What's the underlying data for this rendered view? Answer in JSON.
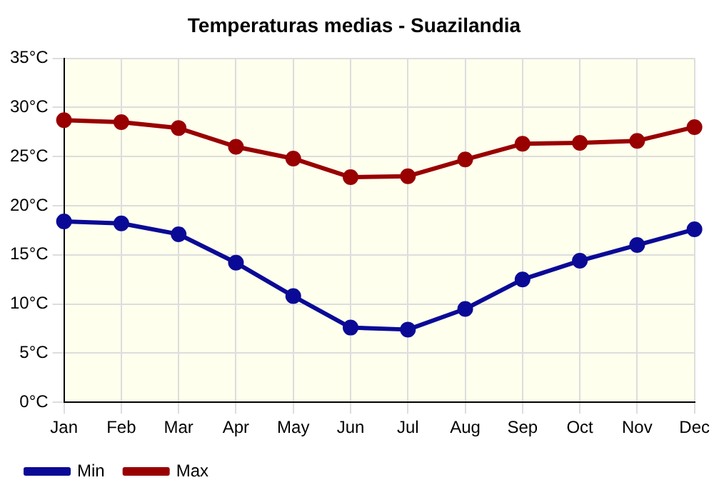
{
  "chart_data": {
    "type": "line",
    "title": "Temperaturas medias - Suazilandia",
    "categories": [
      "Jan",
      "Feb",
      "Mar",
      "Apr",
      "May",
      "Jun",
      "Jul",
      "Aug",
      "Sep",
      "Oct",
      "Nov",
      "Dec"
    ],
    "series": [
      {
        "name": "Min",
        "color": "#0a0a96",
        "values": [
          18.4,
          18.2,
          17.1,
          14.2,
          10.8,
          7.6,
          7.4,
          9.5,
          12.5,
          14.4,
          16.0,
          17.6
        ]
      },
      {
        "name": "Max",
        "color": "#990000",
        "values": [
          28.7,
          28.5,
          27.9,
          26.0,
          24.8,
          22.9,
          23.0,
          24.7,
          26.3,
          26.4,
          26.6,
          28.0
        ]
      }
    ],
    "ylim": [
      0,
      35
    ],
    "yticks": [
      {
        "value": 0,
        "label": "0°C"
      },
      {
        "value": 5,
        "label": "5°C"
      },
      {
        "value": 10,
        "label": "10°C"
      },
      {
        "value": 15,
        "label": "15°C"
      },
      {
        "value": 20,
        "label": "20°C"
      },
      {
        "value": 25,
        "label": "25°C"
      },
      {
        "value": 30,
        "label": "30°C"
      },
      {
        "value": 35,
        "label": "35°C"
      }
    ],
    "grid": true,
    "legend": "bottom left",
    "marker": "circle",
    "line_style": "solid"
  }
}
